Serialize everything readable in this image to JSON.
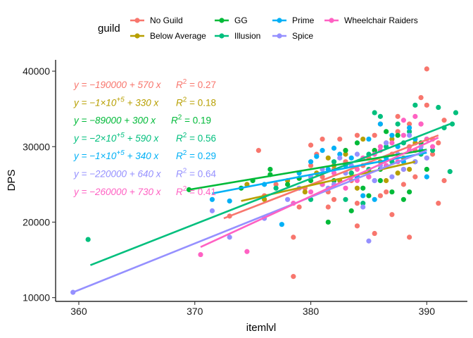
{
  "chart_data": {
    "type": "scatter",
    "xlabel": "itemlvl",
    "ylabel": "DPS",
    "xlim": [
      358,
      393.5
    ],
    "ylim": [
      9500,
      41500
    ],
    "xticks": [
      360,
      370,
      380,
      390
    ],
    "yticks": [
      10000,
      20000,
      30000,
      40000
    ],
    "xtick_labels": [
      "360",
      "370",
      "380",
      "390"
    ],
    "ytick_labels": [
      "10000",
      "20000",
      "30000",
      "40000"
    ],
    "grid": false,
    "legend": {
      "title": "guild",
      "position": "top"
    },
    "series": [
      {
        "name": "No Guild",
        "color": "#F8766D",
        "equation": "y = −190000 + 570 x",
        "r2_label": "R",
        "r2_value": "= 0.27",
        "line": {
          "x": [
            372.5,
            391
          ],
          "y": [
            20500,
            31500
          ]
        },
        "points": [
          [
            375.5,
            29500
          ],
          [
            378.5,
            12800
          ],
          [
            378.5,
            18000
          ],
          [
            379.5,
            24500
          ],
          [
            380,
            30200
          ],
          [
            380.5,
            29000
          ],
          [
            381,
            26000
          ],
          [
            381.5,
            24000
          ],
          [
            381.5,
            22000
          ],
          [
            382,
            27000
          ],
          [
            382.5,
            31000
          ],
          [
            383,
            29500
          ],
          [
            383.5,
            25500
          ],
          [
            384,
            22500
          ],
          [
            384,
            19500
          ],
          [
            384.5,
            27500
          ],
          [
            385,
            28500
          ],
          [
            385.5,
            31500
          ],
          [
            385.5,
            18500
          ],
          [
            386,
            33000
          ],
          [
            386.5,
            30500
          ],
          [
            386.5,
            24000
          ],
          [
            387,
            29000
          ],
          [
            387,
            21000
          ],
          [
            387.5,
            32000
          ],
          [
            388,
            27000
          ],
          [
            388,
            25000
          ],
          [
            388.5,
            30000
          ],
          [
            388.5,
            18000
          ],
          [
            389,
            26000
          ],
          [
            389.5,
            33000
          ],
          [
            389.5,
            36500
          ],
          [
            390,
            40300
          ],
          [
            390,
            35500
          ],
          [
            390.5,
            31000
          ],
          [
            390.5,
            29000
          ],
          [
            391,
            22500
          ],
          [
            391.5,
            25500
          ],
          [
            391.5,
            33500
          ],
          [
            373,
            20800
          ],
          [
            376,
            23500
          ],
          [
            377,
            25000
          ],
          [
            379,
            22000
          ],
          [
            380,
            27500
          ],
          [
            381,
            31000
          ],
          [
            382,
            23000
          ],
          [
            383,
            28000
          ],
          [
            384,
            31500
          ],
          [
            385,
            26000
          ],
          [
            386,
            23500
          ],
          [
            387.5,
            34000
          ],
          [
            388.5,
            33000
          ],
          [
            389,
            29500
          ],
          [
            390,
            28500
          ],
          [
            391,
            30500
          ]
        ]
      },
      {
        "name": "Below Average",
        "color": "#B79F00",
        "equation": "y = −1×10^{+5} + 330 x",
        "r2_label": "R",
        "r2_value": "= 0.18",
        "line": {
          "x": [
            374,
            389
          ],
          "y": [
            22800,
            28000
          ]
        },
        "points": [
          [
            374.5,
            25000
          ],
          [
            376,
            23000
          ],
          [
            378,
            25500
          ],
          [
            379.5,
            24000
          ],
          [
            380.5,
            26500
          ],
          [
            381.5,
            28500
          ],
          [
            382.5,
            25500
          ],
          [
            383,
            29000
          ],
          [
            384,
            24500
          ],
          [
            384.5,
            31000
          ],
          [
            385,
            26000
          ],
          [
            386,
            28000
          ],
          [
            386.5,
            25500
          ],
          [
            387,
            31000
          ],
          [
            387.5,
            26500
          ],
          [
            388,
            28500
          ],
          [
            388.5,
            27000
          ],
          [
            389,
            30500
          ],
          [
            389.5,
            29500
          ],
          [
            383.5,
            26500
          ],
          [
            385.5,
            29500
          ],
          [
            382,
            27500
          ]
        ]
      },
      {
        "name": "GG",
        "color": "#00BA38",
        "equation": "y = −89000 + 300 x",
        "r2_label": "R",
        "r2_value": "= 0.19",
        "line": {
          "x": [
            369.5,
            390
          ],
          "y": [
            24300,
            29600
          ]
        },
        "points": [
          [
            369.5,
            24300
          ],
          [
            374,
            24500
          ],
          [
            375,
            25500
          ],
          [
            376.5,
            27000
          ],
          [
            376.5,
            26300
          ],
          [
            378,
            25000
          ],
          [
            379,
            25800
          ],
          [
            380,
            25500
          ],
          [
            381,
            25000
          ],
          [
            381.5,
            20000
          ],
          [
            382,
            25500
          ],
          [
            383,
            29500
          ],
          [
            383.5,
            21500
          ],
          [
            384,
            30500
          ],
          [
            385,
            23500
          ],
          [
            385.5,
            29500
          ],
          [
            386,
            25500
          ],
          [
            386.5,
            32000
          ],
          [
            387,
            24000
          ],
          [
            387.5,
            31500
          ],
          [
            388,
            23000
          ],
          [
            388.5,
            24000
          ],
          [
            389,
            28000
          ],
          [
            389.5,
            30500
          ],
          [
            390,
            27000
          ],
          [
            384.5,
            24500
          ],
          [
            386,
            27000
          ]
        ]
      },
      {
        "name": "Illusion",
        "color": "#00BF7D",
        "equation": "y = −2×10^{+5} + 590 x",
        "r2_label": "R",
        "r2_value": "= 0.56",
        "line": {
          "x": [
            361,
            392
          ],
          "y": [
            14300,
            33000
          ]
        },
        "points": [
          [
            360.8,
            17700
          ],
          [
            377,
            24500
          ],
          [
            380,
            23000
          ],
          [
            381,
            25000
          ],
          [
            382,
            28000
          ],
          [
            383,
            23000
          ],
          [
            383.5,
            26500
          ],
          [
            384,
            26000
          ],
          [
            384.5,
            22500
          ],
          [
            385,
            29000
          ],
          [
            385.5,
            34500
          ],
          [
            386,
            34000
          ],
          [
            386.5,
            30000
          ],
          [
            387,
            28000
          ],
          [
            387.5,
            33000
          ],
          [
            388,
            30500
          ],
          [
            388.5,
            32000
          ],
          [
            389,
            35500
          ],
          [
            389.5,
            29000
          ],
          [
            390,
            31000
          ],
          [
            390.5,
            29500
          ],
          [
            391,
            35200
          ],
          [
            391.5,
            32500
          ],
          [
            392,
            26700
          ],
          [
            392.5,
            34500
          ],
          [
            392.2,
            33000
          ],
          [
            385,
            27000
          ],
          [
            386.5,
            27500
          ]
        ]
      },
      {
        "name": "Prime",
        "color": "#00B0F6",
        "equation": "y = −1×10^{+5} + 340 x",
        "r2_label": "R",
        "r2_value": "= 0.29",
        "line": {
          "x": [
            371.5,
            390
          ],
          "y": [
            23800,
            29200
          ]
        },
        "points": [
          [
            371.5,
            23000
          ],
          [
            373,
            22800
          ],
          [
            376,
            25000
          ],
          [
            377.5,
            19700
          ],
          [
            379,
            26500
          ],
          [
            380,
            28000
          ],
          [
            380.5,
            28700
          ],
          [
            381,
            29500
          ],
          [
            381.5,
            27000
          ],
          [
            382,
            29800
          ],
          [
            383,
            27500
          ],
          [
            383.5,
            28500
          ],
          [
            384,
            26000
          ],
          [
            384.5,
            23500
          ],
          [
            385,
            31000
          ],
          [
            385.5,
            23000
          ],
          [
            386,
            33000
          ],
          [
            386.5,
            28500
          ],
          [
            387,
            31500
          ],
          [
            387.5,
            30000
          ],
          [
            388,
            28000
          ],
          [
            388.5,
            32500
          ],
          [
            389,
            31000
          ],
          [
            389.5,
            29500
          ],
          [
            390,
            26000
          ],
          [
            382.5,
            29000
          ],
          [
            385.5,
            25500
          ]
        ]
      },
      {
        "name": "Spice",
        "color": "#9590FF",
        "equation": "y = −220000 + 640 x",
        "r2_label": "R",
        "r2_value": "= 0.64",
        "line": {
          "x": [
            359.5,
            390
          ],
          "y": [
            10700,
            29500
          ]
        },
        "points": [
          [
            359.5,
            10700
          ],
          [
            371.5,
            21500
          ],
          [
            373,
            18000
          ],
          [
            376,
            20500
          ],
          [
            378,
            23000
          ],
          [
            379,
            24500
          ],
          [
            380,
            26000
          ],
          [
            381,
            27000
          ],
          [
            382,
            25000
          ],
          [
            382.5,
            28500
          ],
          [
            383,
            26500
          ],
          [
            384,
            29000
          ],
          [
            384.5,
            22000
          ],
          [
            385,
            17500
          ],
          [
            385.5,
            25500
          ],
          [
            386,
            27500
          ],
          [
            386.5,
            30500
          ],
          [
            387,
            26000
          ],
          [
            387.5,
            29000
          ],
          [
            388,
            27000
          ],
          [
            388.5,
            31500
          ],
          [
            389,
            28000
          ],
          [
            389.5,
            30000
          ],
          [
            390,
            28500
          ],
          [
            383.5,
            27500
          ],
          [
            381.5,
            24500
          ]
        ]
      },
      {
        "name": "Wheelchair Raiders",
        "color": "#FF61C3",
        "equation": "y = −260000 + 730 x",
        "r2_label": "R",
        "r2_value": "= 0.41",
        "line": {
          "x": [
            370.5,
            391
          ],
          "y": [
            16700,
            31200
          ]
        },
        "points": [
          [
            370.5,
            15700
          ],
          [
            374.5,
            16100
          ],
          [
            378.5,
            22500
          ],
          [
            380,
            24000
          ],
          [
            381,
            25000
          ],
          [
            382,
            26500
          ],
          [
            383,
            24500
          ],
          [
            384,
            27000
          ],
          [
            384.5,
            28500
          ],
          [
            385,
            26000
          ],
          [
            385.5,
            29000
          ],
          [
            386,
            30000
          ],
          [
            386.5,
            27500
          ],
          [
            387,
            30500
          ],
          [
            387.5,
            28000
          ],
          [
            388,
            31500
          ],
          [
            388.5,
            29500
          ],
          [
            389,
            34000
          ],
          [
            389.5,
            33000
          ],
          [
            390,
            31000
          ],
          [
            390.5,
            30000
          ],
          [
            384,
            25500
          ],
          [
            386,
            29500
          ],
          [
            388,
            33500
          ]
        ]
      }
    ]
  }
}
